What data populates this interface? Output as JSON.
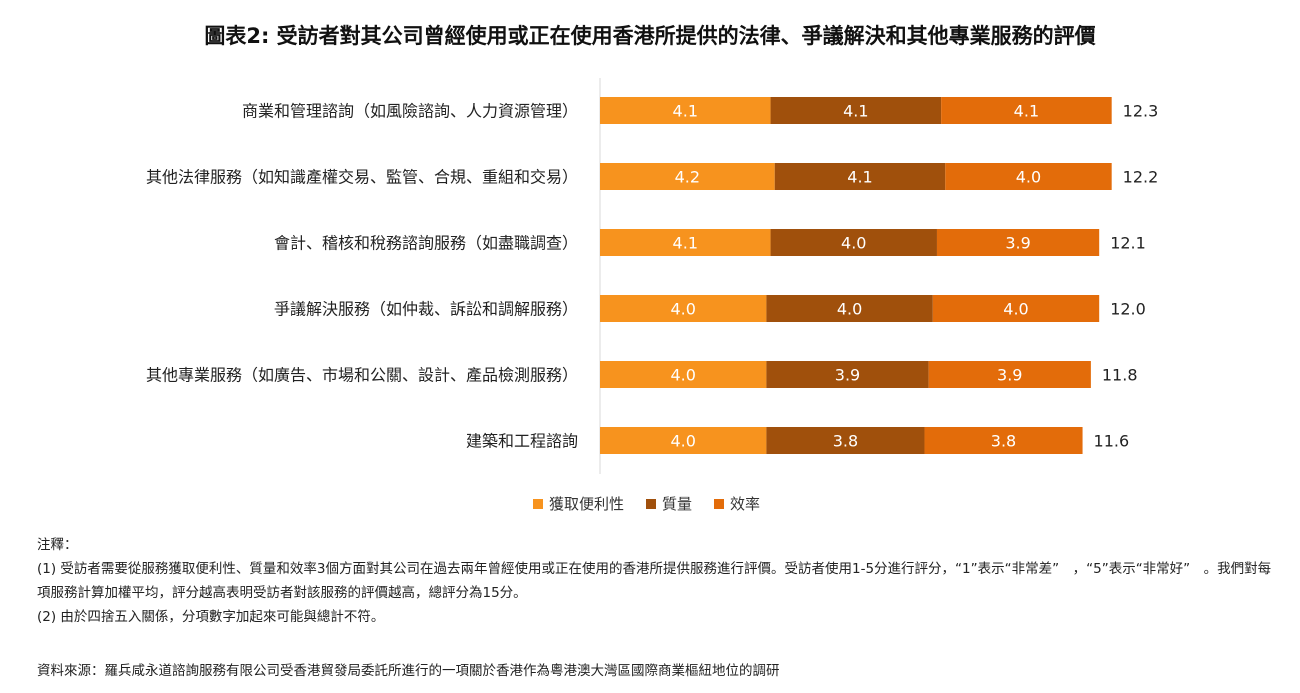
{
  "title": "圖表2: 受訪者對其公司曾經使用或正在使用香港所提供的法律、爭議解決和其他專業服務的評價",
  "chart_data": {
    "type": "bar",
    "orientation": "horizontal",
    "stacked": true,
    "categories": [
      "商業和管理諮詢（如風險諮詢、人力資源管理）",
      "其他法律服務（如知識產權交易、監管、合規、重組和交易）",
      "會計、稽核和稅務諮詢服務（如盡職調查）",
      "爭議解決服務（如仲裁、訴訟和調解服務）",
      "其他專業服務（如廣告、市場和公關、設計、產品檢測服務）",
      "建築和工程諮詢"
    ],
    "series": [
      {
        "name": "獲取便利性",
        "color": "#F7931E",
        "values": [
          4.1,
          4.2,
          4.1,
          4.0,
          4.0,
          4.0
        ]
      },
      {
        "name": "質量",
        "color": "#A0500C",
        "values": [
          4.1,
          4.1,
          4.0,
          4.0,
          3.9,
          3.8
        ]
      },
      {
        "name": "效率",
        "color": "#E36C0A",
        "values": [
          4.1,
          4.0,
          3.9,
          4.0,
          3.9,
          3.8
        ]
      }
    ],
    "totals": [
      "12.3",
      "12.2",
      "12.1",
      "12.0",
      "11.8",
      "11.6"
    ],
    "value_labels": [
      [
        "4.1",
        "4.1",
        "4.1"
      ],
      [
        "4.2",
        "4.1",
        "4.0"
      ],
      [
        "4.1",
        "4.0",
        "3.9"
      ],
      [
        "4.0",
        "4.0",
        "4.0"
      ],
      [
        "4.0",
        "3.9",
        "3.9"
      ],
      [
        "4.0",
        "3.8",
        "3.8"
      ]
    ],
    "xlim": [
      0,
      15
    ],
    "grid": false,
    "legend_position": "bottom"
  },
  "legend": [
    "獲取便利性",
    "質量",
    "效率"
  ],
  "notes": {
    "heading": "注釋：",
    "note1": "(1) 受訪者需要從服務獲取便利性、質量和效率3個方面對其公司在過去兩年曾經使用或正在使用的香港所提供服務進行評價。受訪者使用1-5分進行評分，“1”表示“非常差”　，“5”表示“非常好”　。我們對每項服務計算加權平均，評分越高表明受訪者對該服務的評價越高，總評分為15分。",
    "note2": "(2) 由於四捨五入關係，分項數字加起來可能與總計不符。"
  },
  "source": "資料來源：羅兵咸永道諮詢服務有限公司受香港貿發局委託所進行的一項關於香港作為粵港澳大灣區國際商業樞紐地位的調研"
}
